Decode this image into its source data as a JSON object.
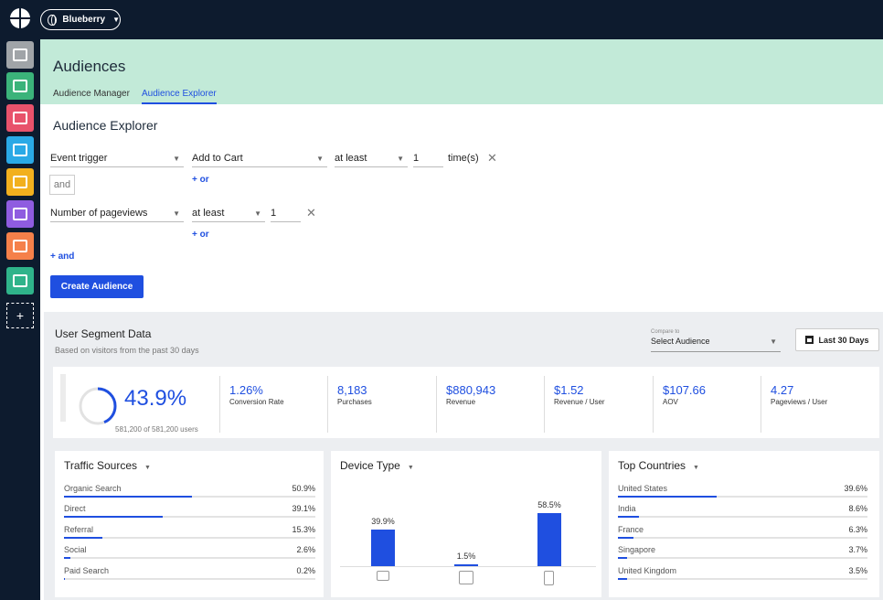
{
  "topbar": {
    "site_name": "Blueberry"
  },
  "header": {
    "title": "Audiences",
    "tabs": [
      {
        "label": "Audience Manager"
      },
      {
        "label": "Audience Explorer"
      }
    ]
  },
  "explorer": {
    "title": "Audience Explorer",
    "rule1": {
      "field": "Event trigger",
      "event": "Add to Cart",
      "operator": "at least",
      "count": "1",
      "unit": "time(s)",
      "or_label": "+ or"
    },
    "joiner": "and",
    "rule2": {
      "field": "Number of pageviews",
      "operator": "at least",
      "count": "1",
      "or_label": "+ or"
    },
    "add_and_label": "+ and",
    "create_button": "Create Audience"
  },
  "segment": {
    "title": "User Segment Data",
    "subtitle": "Based on visitors from the past 30 days",
    "compare_label": "Compare to",
    "compare_value": "Select Audience",
    "date_button": "Last 30 Days",
    "audience_pct": "43.9%",
    "audience_pct_value": 43.9,
    "users_note": "581,200 of 581,200 users",
    "stats": [
      {
        "value": "1.26%",
        "label": "Conversion Rate"
      },
      {
        "value": "8,183",
        "label": "Purchases"
      },
      {
        "value": "$880,943",
        "label": "Revenue"
      },
      {
        "value": "$1.52",
        "label": "Revenue / User"
      },
      {
        "value": "$107.66",
        "label": "AOV"
      },
      {
        "value": "4.27",
        "label": "Pageviews / User"
      }
    ]
  },
  "traffic": {
    "title": "Traffic Sources",
    "rows": [
      {
        "name": "Organic Search",
        "pct": "50.9%",
        "value": 50.9
      },
      {
        "name": "Direct",
        "pct": "39.1%",
        "value": 39.1
      },
      {
        "name": "Referral",
        "pct": "15.3%",
        "value": 15.3
      },
      {
        "name": "Social",
        "pct": "2.6%",
        "value": 2.6
      },
      {
        "name": "Paid Search",
        "pct": "0.2%",
        "value": 0.2
      }
    ]
  },
  "device": {
    "title": "Device Type",
    "items": [
      {
        "icon": "desktop-icon",
        "pct": "39.9%",
        "value": 39.9
      },
      {
        "icon": "tablet-icon",
        "pct": "1.5%",
        "value": 1.5
      },
      {
        "icon": "phone-icon",
        "pct": "58.5%",
        "value": 58.5
      }
    ]
  },
  "countries": {
    "title": "Top Countries",
    "rows": [
      {
        "name": "United States",
        "pct": "39.6%",
        "value": 39.6
      },
      {
        "name": "India",
        "pct": "8.6%",
        "value": 8.6
      },
      {
        "name": "France",
        "pct": "6.3%",
        "value": 6.3
      },
      {
        "name": "Singapore",
        "pct": "3.7%",
        "value": 3.7
      },
      {
        "name": "United Kingdom",
        "pct": "3.5%",
        "value": 3.5
      }
    ]
  },
  "sidebar": {
    "items": [
      {
        "icon": "dashboard-icon",
        "color": "#a0a4a8"
      },
      {
        "icon": "audience-icon",
        "color": "#3bb37a"
      },
      {
        "icon": "layout-icon",
        "color": "#e8526b"
      },
      {
        "icon": "list-icon",
        "color": "#2aa9e6"
      },
      {
        "icon": "email-icon",
        "color": "#f2b01e"
      },
      {
        "icon": "push-icon",
        "color": "#8f5ce0"
      },
      {
        "icon": "message-icon",
        "color": "#f5804a"
      },
      {
        "icon": "sync-icon",
        "color": "#2fb38a"
      }
    ],
    "add_label": "+"
  },
  "colors": {
    "accent": "#1f4fe0",
    "header_bg": "#c2ead8",
    "nav_bg": "#0d1b2e"
  }
}
